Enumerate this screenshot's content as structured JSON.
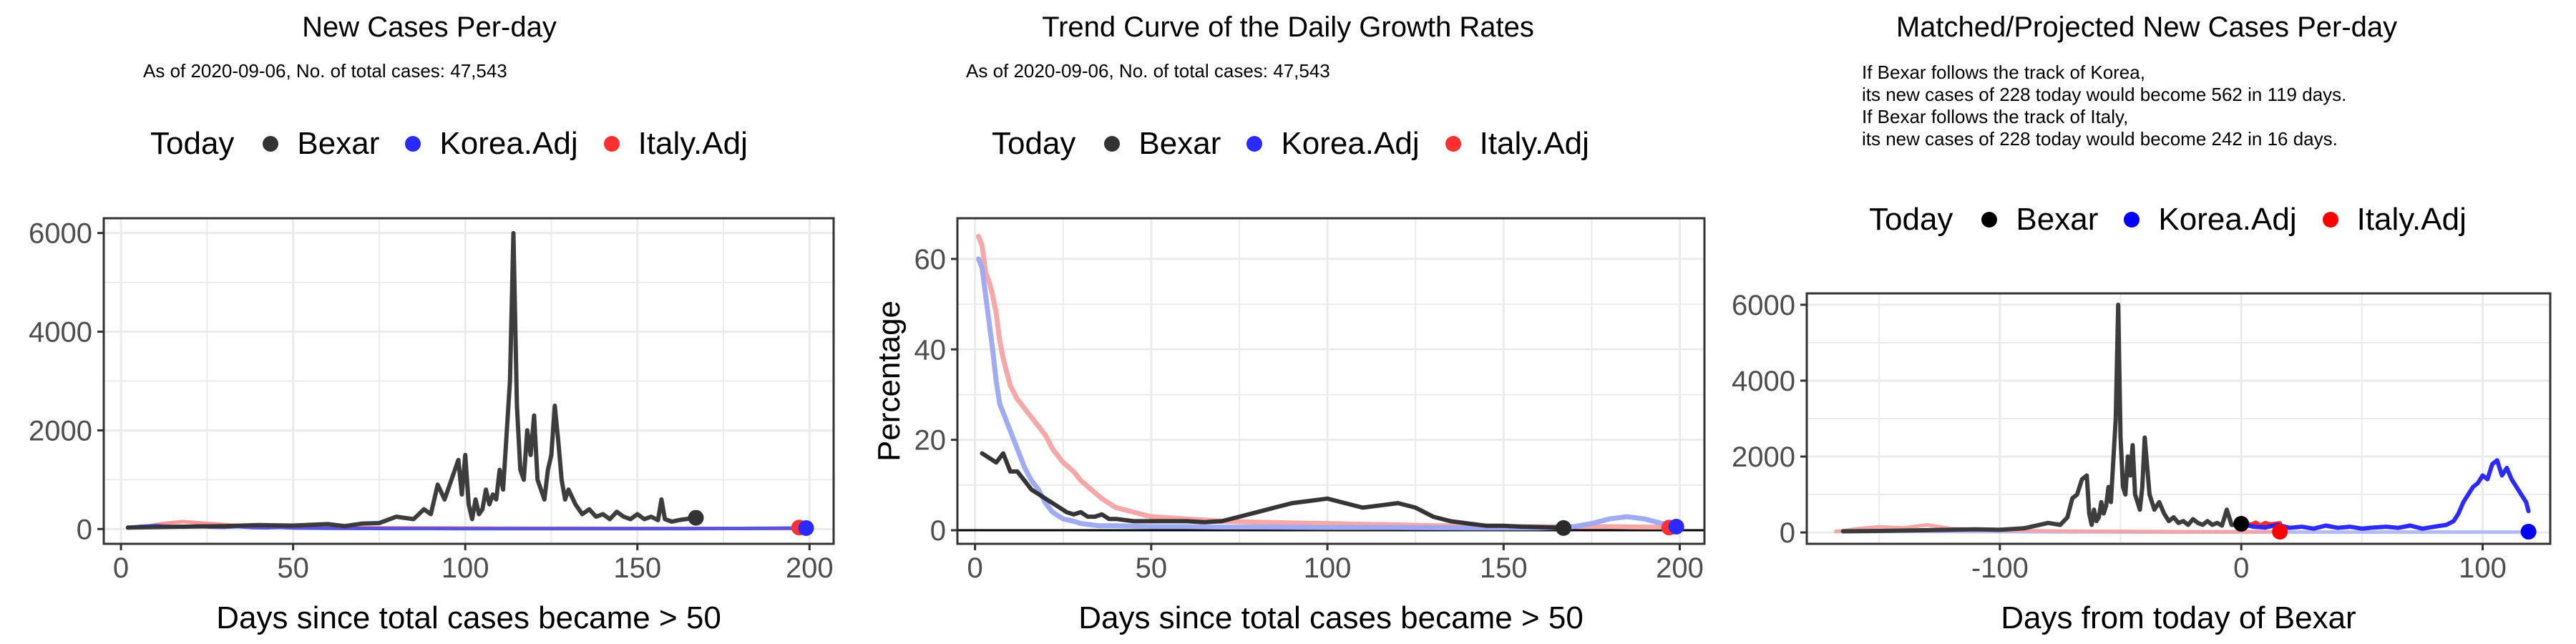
{
  "colors": {
    "bexar": "#222222",
    "korea": "#1f1fff",
    "italy": "#ff2a2a",
    "korea_light": "#9aa6f2",
    "italy_light": "#f6a3a3",
    "grid": "#ebebeb",
    "panel_border": "#333333"
  },
  "panels": [
    {
      "title": "New Cases Per-day",
      "subtitle": [
        "As of 2020-09-06, No. of total cases: 47,543"
      ],
      "legend": {
        "title": "Today",
        "items": [
          {
            "label": "Bexar",
            "color": "#333333"
          },
          {
            "label": "Korea.Adj",
            "color": "#2a2aff"
          },
          {
            "label": "Italy.Adj",
            "color": "#ff3030"
          }
        ]
      }
    },
    {
      "title": "Trend Curve of the Daily Growth Rates",
      "subtitle": [
        "As of 2020-09-06, No. of total cases: 47,543"
      ],
      "legend": {
        "title": "Today",
        "items": [
          {
            "label": "Bexar",
            "color": "#333333"
          },
          {
            "label": "Korea.Adj",
            "color": "#2a2aff"
          },
          {
            "label": "Italy.Adj",
            "color": "#ff3030"
          }
        ]
      }
    },
    {
      "title": "Matched/Projected New Cases Per-day",
      "subtitle": [
        "If Bexar follows the track of Korea,",
        "its new cases of 228 today would become 562 in 119 days.",
        "If Bexar follows the track of Italy,",
        "its new cases of 228 today would become 242 in 16 days."
      ],
      "legend": {
        "title": "Today",
        "items": [
          {
            "label": "Bexar",
            "color": "#000000"
          },
          {
            "label": "Korea.Adj",
            "color": "#0000ff"
          },
          {
            "label": "Italy.Adj",
            "color": "#ff0000"
          }
        ]
      }
    }
  ],
  "chart_data": [
    {
      "type": "line",
      "title": "New Cases Per-day",
      "xlabel": "Days since total cases became > 50",
      "ylabel": "",
      "xlim": [
        -5,
        207
      ],
      "ylim": [
        -300,
        6300
      ],
      "xticks": [
        0,
        50,
        100,
        150,
        200
      ],
      "yticks": [
        0,
        2000,
        4000,
        6000
      ],
      "grid": true,
      "legend": "top",
      "series": [
        {
          "name": "Italy.Adj",
          "color": "#ff9090",
          "width": 5,
          "x": [
            2,
            8,
            12,
            18,
            22,
            28,
            32,
            38,
            42,
            48,
            55,
            62,
            70,
            80,
            90,
            100,
            110,
            120,
            130,
            140,
            150,
            160,
            170,
            180,
            190,
            199
          ],
          "y": [
            20,
            60,
            110,
            150,
            130,
            100,
            80,
            60,
            50,
            45,
            40,
            35,
            30,
            25,
            22,
            20,
            18,
            16,
            15,
            14,
            12,
            12,
            11,
            10,
            10,
            10
          ]
        },
        {
          "name": "Korea.Adj",
          "color": "#5050e0",
          "width": 5,
          "x": [
            2,
            6,
            10,
            14,
            18,
            22,
            26,
            30,
            34,
            38,
            42,
            46,
            50,
            60,
            70,
            80,
            90,
            100,
            110,
            120,
            130,
            140,
            150,
            160,
            170,
            180,
            190,
            200
          ],
          "y": [
            30,
            55,
            70,
            50,
            45,
            60,
            40,
            35,
            50,
            30,
            25,
            35,
            20,
            15,
            12,
            10,
            10,
            8,
            8,
            8,
            8,
            8,
            8,
            8,
            10,
            12,
            15,
            20
          ]
        },
        {
          "name": "Bexar",
          "color": "#333333",
          "width": 6,
          "x": [
            2,
            10,
            20,
            30,
            40,
            50,
            60,
            65,
            70,
            75,
            80,
            85,
            88,
            90,
            92,
            94,
            96,
            98,
            99,
            100,
            101,
            102,
            103,
            104,
            105,
            106,
            107,
            108,
            109,
            110,
            111,
            112,
            113,
            114,
            115,
            116,
            117,
            118,
            119,
            120,
            121,
            122,
            123,
            124,
            125,
            126,
            127,
            128,
            129,
            130,
            132,
            134,
            136,
            138,
            140,
            142,
            144,
            146,
            148,
            150,
            152,
            154,
            156,
            157,
            158,
            160,
            162,
            164,
            166,
            167
          ],
          "y": [
            30,
            40,
            50,
            60,
            80,
            70,
            100,
            60,
            110,
            120,
            250,
            200,
            400,
            300,
            900,
            600,
            1000,
            1400,
            700,
            1500,
            500,
            200,
            600,
            300,
            400,
            800,
            500,
            700,
            600,
            1200,
            800,
            1900,
            3000,
            6000,
            2500,
            1200,
            1000,
            2000,
            1500,
            2300,
            1000,
            800,
            600,
            1200,
            1500,
            2500,
            1800,
            1000,
            600,
            800,
            500,
            300,
            400,
            250,
            300,
            200,
            350,
            250,
            200,
            300,
            200,
            250,
            180,
            600,
            200,
            150,
            180,
            200,
            220,
            228
          ]
        },
        {
          "name": "Bexar-today",
          "color": "#333333",
          "markers": [
            {
              "x": 167,
              "y": 228
            }
          ]
        },
        {
          "name": "Italy-today",
          "color": "#ff3030",
          "markers": [
            {
              "x": 197,
              "y": 30
            }
          ]
        },
        {
          "name": "Korea-today",
          "color": "#2a2aff",
          "markers": [
            {
              "x": 199,
              "y": 20
            }
          ]
        }
      ]
    },
    {
      "type": "line",
      "title": "Trend Curve of the Daily Growth Rates",
      "xlabel": "Days since total cases became > 50",
      "ylabel": "Percentage",
      "xlim": [
        -5,
        207
      ],
      "ylim": [
        -3,
        69
      ],
      "xticks": [
        0,
        50,
        100,
        150,
        200
      ],
      "yticks": [
        0,
        20,
        40,
        60
      ],
      "grid": true,
      "hline": 0,
      "legend": "top",
      "series": [
        {
          "name": "Italy.Adj",
          "color": "#f6a3a3",
          "width": 7,
          "x": [
            1,
            2,
            3,
            4,
            5,
            6,
            7,
            8,
            9,
            10,
            12,
            14,
            16,
            18,
            20,
            22,
            25,
            28,
            30,
            33,
            36,
            40,
            45,
            50,
            60,
            70,
            80,
            90,
            100,
            110,
            120,
            130,
            140,
            150,
            160,
            170,
            180,
            190,
            199
          ],
          "y": [
            65,
            63,
            57,
            55,
            52,
            48,
            42,
            38,
            35,
            32,
            29,
            27,
            25,
            23,
            21,
            18,
            15,
            13,
            11,
            9,
            7,
            5,
            4,
            3,
            2.5,
            2,
            1.8,
            1.6,
            1.5,
            1.3,
            1.2,
            1,
            1,
            0.8,
            0.8,
            0.8,
            0.8,
            0.7,
            0.7
          ]
        },
        {
          "name": "Korea.Adj",
          "color": "#9aa6f2",
          "width": 7,
          "x": [
            1,
            2,
            3,
            4,
            5,
            6,
            7,
            8,
            9,
            10,
            11,
            12,
            14,
            16,
            18,
            20,
            22,
            25,
            28,
            30,
            35,
            40,
            50,
            60,
            70,
            80,
            100,
            120,
            140,
            160,
            170,
            175,
            180,
            185,
            190,
            195,
            200
          ],
          "y": [
            60,
            58,
            52,
            46,
            40,
            33,
            28,
            26,
            24,
            22,
            20,
            18,
            14,
            11,
            9,
            6,
            4,
            2.5,
            2,
            1.5,
            1,
            1,
            0.8,
            0.8,
            0.7,
            0.7,
            0.6,
            0.6,
            0.5,
            0.5,
            0.8,
            1.5,
            2.5,
            3,
            2.5,
            1.5,
            1
          ]
        },
        {
          "name": "Bexar",
          "color": "#2a2a2a",
          "width": 6,
          "x": [
            2,
            4,
            6,
            8,
            10,
            12,
            14,
            16,
            18,
            20,
            22,
            24,
            26,
            28,
            30,
            32,
            34,
            36,
            38,
            40,
            45,
            50,
            55,
            60,
            65,
            70,
            75,
            80,
            85,
            90,
            95,
            100,
            105,
            110,
            115,
            120,
            125,
            130,
            135,
            140,
            145,
            150,
            155,
            160,
            165,
            167
          ],
          "y": [
            17,
            16,
            15,
            17,
            13,
            13,
            11,
            9,
            8,
            7,
            6,
            5,
            4,
            3.5,
            4,
            3,
            3,
            3.5,
            2.5,
            2.5,
            2,
            2,
            2,
            2,
            1.8,
            2,
            3,
            4,
            5,
            6,
            6.5,
            7,
            6,
            5,
            5.5,
            6,
            5,
            3,
            2,
            1.5,
            1,
            1,
            0.8,
            0.7,
            0.6,
            0.5
          ]
        },
        {
          "name": "Bexar-today",
          "color": "#2a2a2a",
          "markers": [
            {
              "x": 167,
              "y": 0.5
            }
          ]
        },
        {
          "name": "Italy-today",
          "color": "#ff3030",
          "markers": [
            {
              "x": 197,
              "y": 0.6
            }
          ]
        },
        {
          "name": "Korea-today",
          "color": "#2a2aff",
          "markers": [
            {
              "x": 199,
              "y": 0.8
            }
          ]
        }
      ]
    },
    {
      "type": "line",
      "title": "Matched/Projected New Cases Per-day",
      "xlabel": "Days from today of Bexar",
      "ylabel": "",
      "xlim": [
        -180,
        128
      ],
      "ylim": [
        -300,
        6300
      ],
      "xticks": [
        -100,
        0,
        100
      ],
      "yticks": [
        0,
        2000,
        4000,
        6000
      ],
      "grid": true,
      "legend": "top",
      "series": [
        {
          "name": "Korea.Adj.light",
          "color": "#b0b8f5",
          "width": 5,
          "x": [
            -168,
            -150,
            -130,
            -110,
            -90,
            -70,
            -50,
            -30,
            -10,
            0,
            20,
            40,
            60,
            80,
            100,
            120
          ],
          "y": [
            30,
            40,
            30,
            25,
            20,
            15,
            12,
            10,
            10,
            10,
            10,
            10,
            10,
            10,
            10,
            10
          ]
        },
        {
          "name": "Italy.Adj.light",
          "color": "#f6a3a3",
          "width": 5,
          "x": [
            -168,
            -160,
            -150,
            -140,
            -130,
            -120,
            -110,
            -100,
            -80,
            -60,
            -40,
            -20,
            0,
            10,
            17
          ],
          "y": [
            20,
            90,
            150,
            120,
            200,
            100,
            80,
            60,
            40,
            30,
            25,
            20,
            20,
            20,
            20
          ]
        },
        {
          "name": "Bexar",
          "color": "#333333",
          "width": 6,
          "x": [
            -165,
            -150,
            -130,
            -110,
            -100,
            -90,
            -80,
            -75,
            -72,
            -70,
            -68,
            -66,
            -64,
            -63,
            -62,
            -61,
            -60,
            -59,
            -58,
            -57,
            -56,
            -55,
            -54,
            -53,
            -52,
            -51,
            -50,
            -49,
            -48,
            -47,
            -46,
            -45,
            -44,
            -43,
            -42,
            -41,
            -40,
            -38,
            -36,
            -34,
            -32,
            -30,
            -28,
            -26,
            -24,
            -22,
            -20,
            -18,
            -16,
            -14,
            -12,
            -10,
            -8,
            -6,
            -4,
            -2,
            0
          ],
          "y": [
            30,
            40,
            60,
            80,
            70,
            110,
            250,
            200,
            400,
            900,
            1000,
            1400,
            1500,
            500,
            200,
            600,
            300,
            400,
            800,
            500,
            700,
            1200,
            800,
            1900,
            3000,
            6000,
            2500,
            1200,
            1000,
            2000,
            1500,
            2300,
            1000,
            800,
            600,
            1200,
            2500,
            1000,
            600,
            800,
            500,
            300,
            400,
            250,
            300,
            200,
            350,
            250,
            200,
            300,
            200,
            250,
            180,
            600,
            200,
            200,
            228
          ]
        },
        {
          "name": "Italy.Adj",
          "color": "#ff2020",
          "width": 6,
          "x": [
            0,
            2,
            4,
            6,
            8,
            10,
            12,
            14,
            16
          ],
          "y": [
            228,
            240,
            200,
            260,
            180,
            250,
            210,
            230,
            242
          ]
        },
        {
          "name": "Korea.Adj",
          "color": "#2020ff",
          "width": 6,
          "x": [
            0,
            5,
            10,
            15,
            20,
            25,
            30,
            35,
            40,
            45,
            50,
            55,
            60,
            65,
            70,
            75,
            80,
            85,
            88,
            90,
            92,
            94,
            96,
            98,
            100,
            102,
            104,
            106,
            108,
            110,
            112,
            114,
            116,
            118,
            119
          ],
          "y": [
            228,
            150,
            130,
            200,
            120,
            150,
            100,
            180,
            120,
            150,
            100,
            130,
            150,
            120,
            180,
            100,
            150,
            200,
            300,
            500,
            800,
            1000,
            1200,
            1300,
            1500,
            1400,
            1800,
            1900,
            1500,
            1700,
            1400,
            1200,
            1000,
            800,
            562
          ]
        },
        {
          "name": "Bexar-today",
          "color": "#000000",
          "markers": [
            {
              "x": 0,
              "y": 228
            }
          ]
        },
        {
          "name": "Italy-today",
          "color": "#ff0000",
          "markers": [
            {
              "x": 16,
              "y": 20
            }
          ]
        },
        {
          "name": "Korea-today",
          "color": "#0000ff",
          "markers": [
            {
              "x": 119,
              "y": 20
            }
          ]
        }
      ]
    }
  ]
}
